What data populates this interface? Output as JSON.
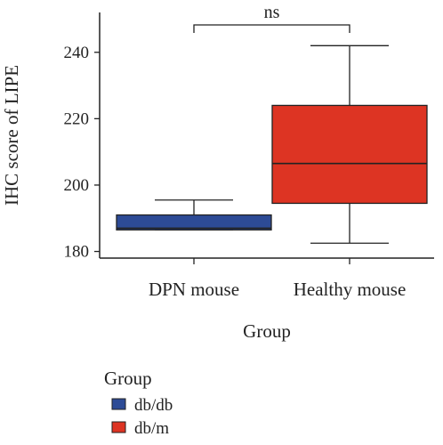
{
  "chart_data": {
    "type": "box",
    "xlabel": "Group",
    "ylabel": "IHC score of LIPE",
    "categories": [
      "DPN mouse",
      "Healthy mouse"
    ],
    "ylim": [
      178,
      252
    ],
    "yticks": [
      180,
      200,
      220,
      240
    ],
    "boxes": [
      {
        "category": "DPN mouse",
        "group": "db/db",
        "color": "#2d4b96",
        "min": 186.5,
        "q1": 186.5,
        "median": 187,
        "q3": 191,
        "max": 195.5
      },
      {
        "category": "Healthy mouse",
        "group": "db/m",
        "color": "#dd3423",
        "min": 182.5,
        "q1": 194.5,
        "median": 206.5,
        "q3": 224,
        "max": 242
      }
    ],
    "significance": {
      "label": "ns",
      "between": [
        "DPN mouse",
        "Healthy mouse"
      ]
    },
    "legend": {
      "title": "Group",
      "position": "bottom-left",
      "entries": [
        {
          "label": "db/db",
          "color": "#2d4b96"
        },
        {
          "label": "db/m",
          "color": "#dd3423"
        }
      ]
    },
    "grid": false
  }
}
